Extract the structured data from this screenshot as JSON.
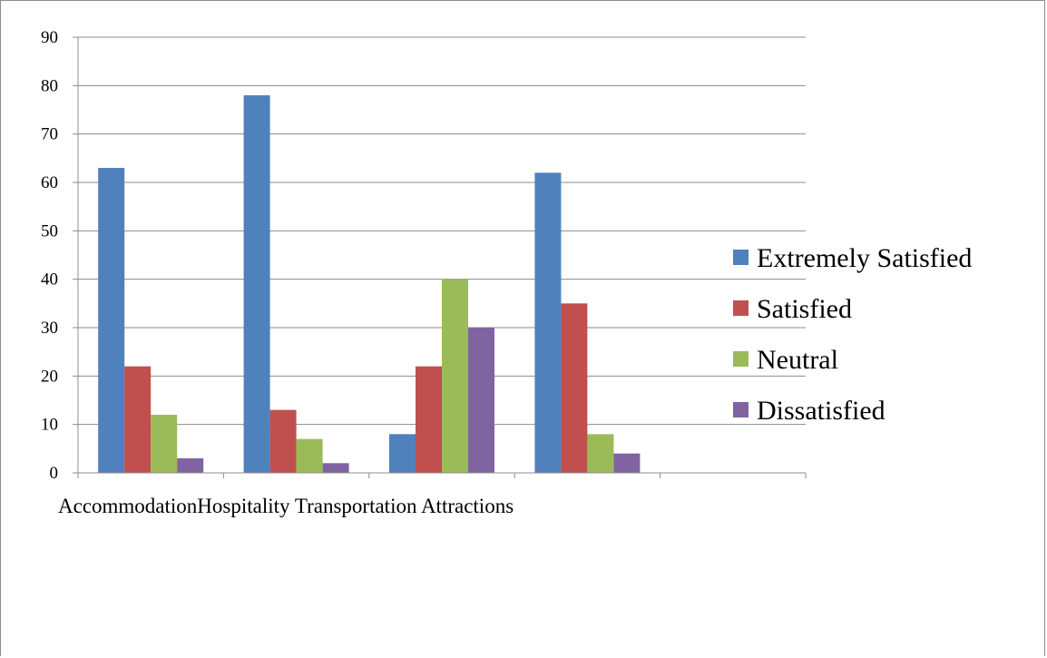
{
  "chart_data": {
    "type": "bar",
    "categories": [
      "Accommodation",
      "Hospitality",
      "Transportation",
      "Attractions",
      ""
    ],
    "series": [
      {
        "name": "Extremely Satisfied",
        "color": "#4f81bd",
        "values": [
          63,
          78,
          8,
          62,
          null
        ]
      },
      {
        "name": "Satisfied",
        "color": "#c0504d",
        "values": [
          22,
          13,
          22,
          35,
          null
        ]
      },
      {
        "name": "Neutral",
        "color": "#9bbb59",
        "values": [
          12,
          7,
          40,
          8,
          null
        ]
      },
      {
        "name": "Dissatisfied",
        "color": "#8064a2",
        "values": [
          3,
          2,
          30,
          4,
          null
        ]
      }
    ],
    "ylim": [
      0,
      90
    ],
    "yticks": [
      0,
      10,
      20,
      30,
      40,
      50,
      60,
      70,
      80,
      90
    ],
    "grid": true,
    "legend": "right",
    "title": "",
    "xlabel": "",
    "ylabel": ""
  }
}
